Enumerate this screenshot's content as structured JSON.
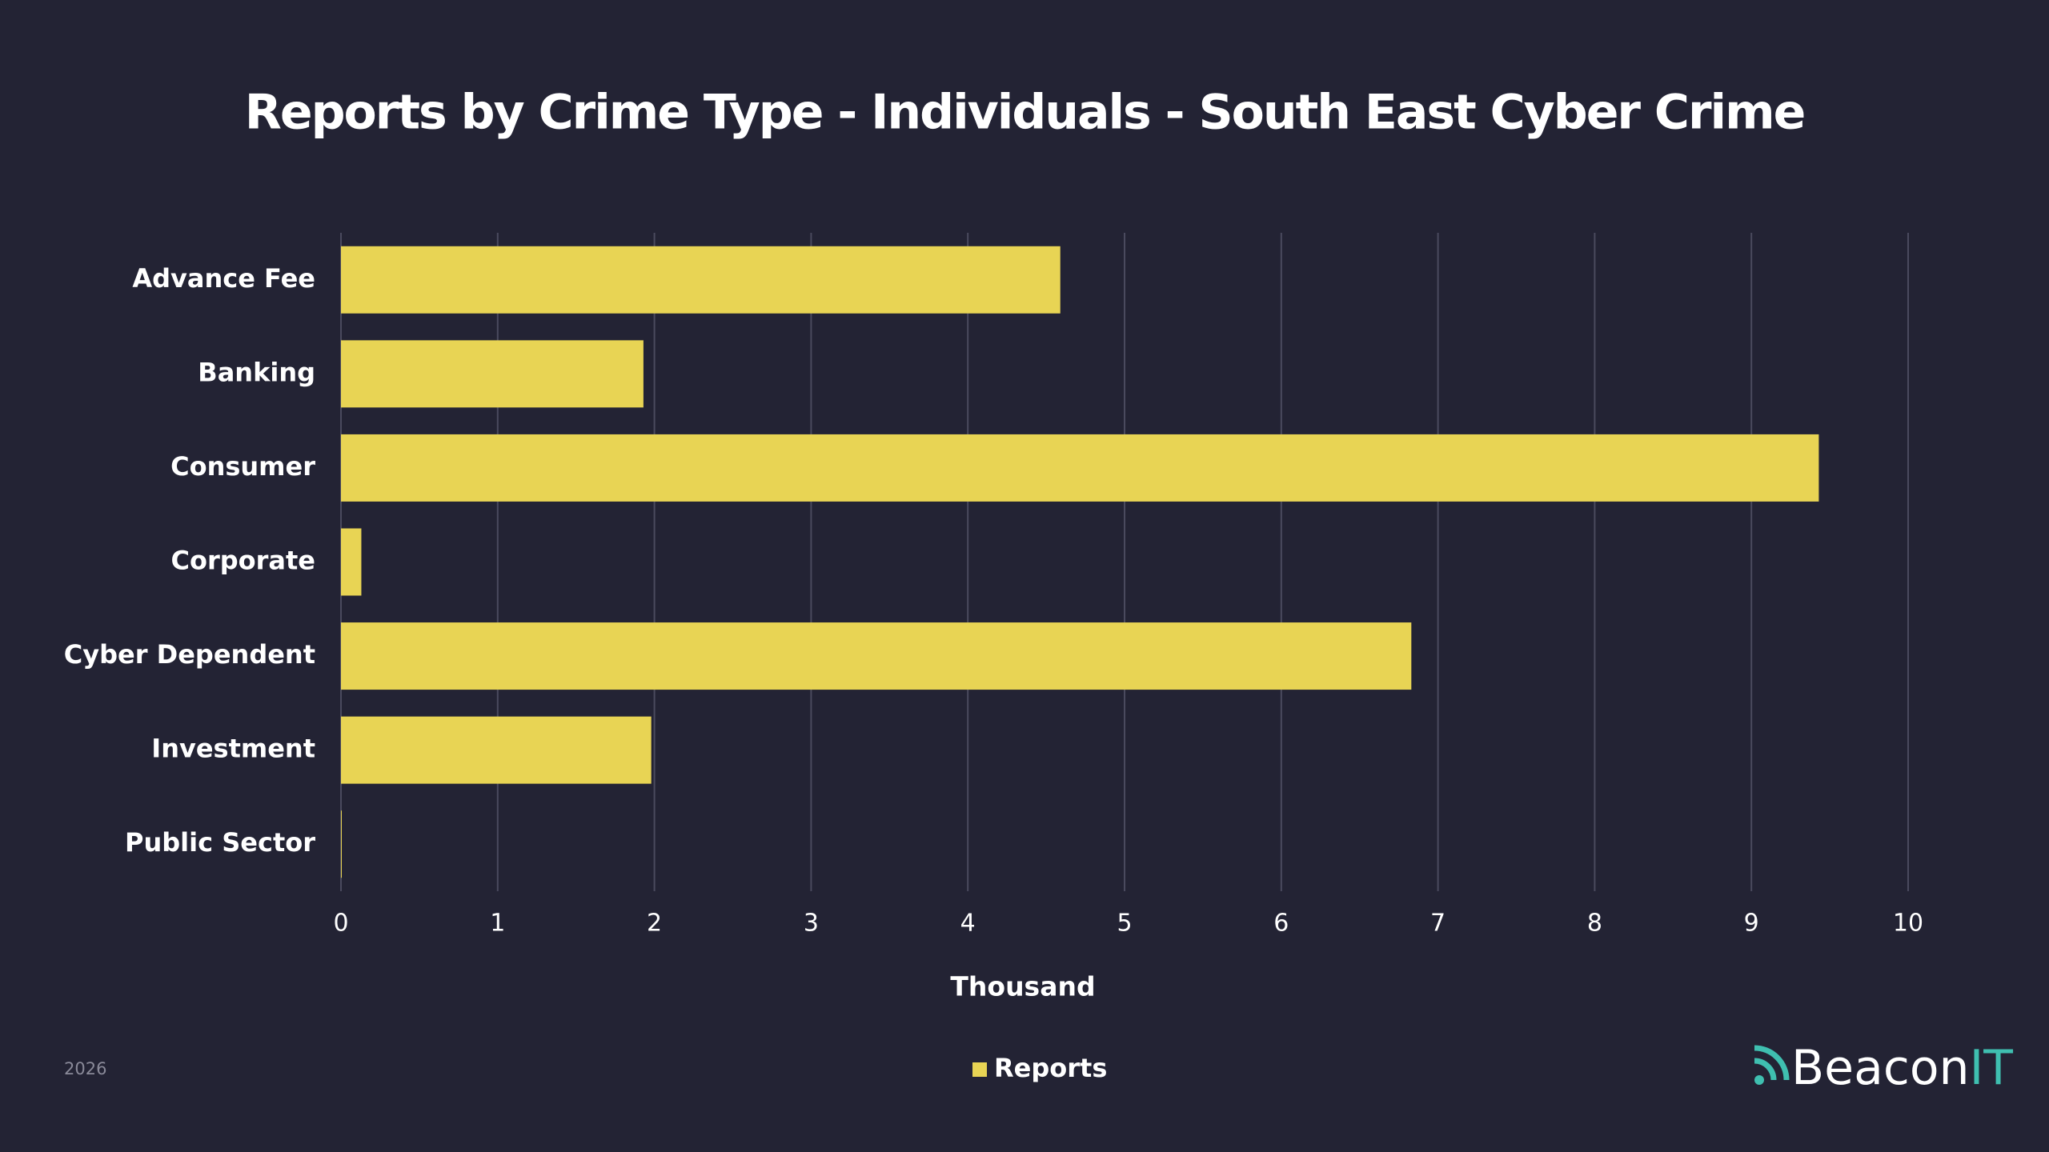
{
  "chart_data": {
    "type": "barh",
    "title": "Reports by Crime Type - Individuals - South East Cyber Crime",
    "categories": [
      "Advance Fee",
      "Banking",
      "Consumer",
      "Corporate",
      "Cyber Dependent",
      "Investment",
      "Public Sector"
    ],
    "series": [
      {
        "name": "Reports",
        "color": "#e8d454",
        "values": [
          4.59,
          1.93,
          9.43,
          0.13,
          6.83,
          1.98,
          0.005
        ]
      }
    ],
    "xlabel": "Thousand",
    "xlim": [
      0,
      10
    ],
    "xticks": [
      0,
      1,
      2,
      3,
      4,
      5,
      6,
      7,
      8,
      9,
      10
    ],
    "grid": true,
    "legend": "bottom"
  },
  "footer": {
    "year": "2026",
    "brand": "Beacon",
    "brand_accent": "IT"
  }
}
